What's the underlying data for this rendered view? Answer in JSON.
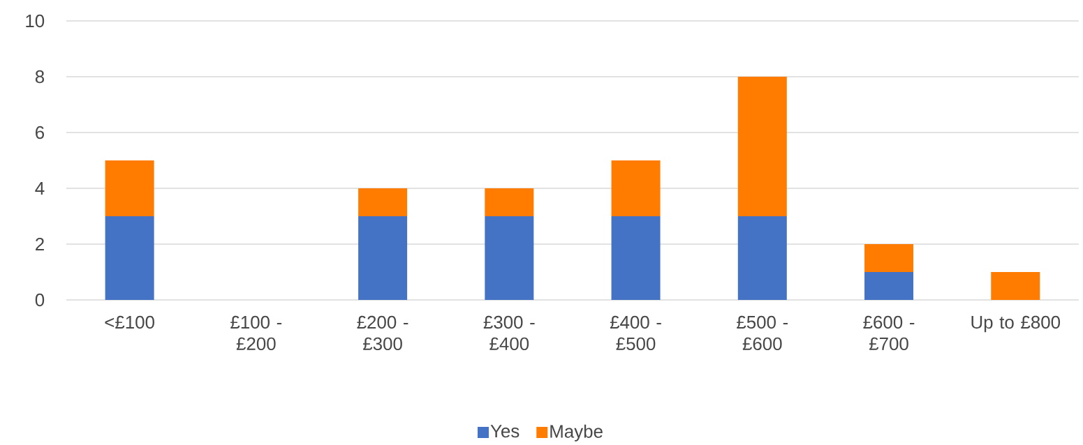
{
  "chart_data": {
    "type": "bar",
    "stacked": true,
    "categories": [
      "<£100",
      "£100 - £200",
      "£200 - £300",
      "£300 - £400",
      "£400 - £500",
      "£500 - £600",
      "£600 - £700",
      "Up to £800"
    ],
    "series": [
      {
        "name": "Yes",
        "color": "#4472c4",
        "values": [
          3,
          0,
          3,
          3,
          3,
          3,
          1,
          0
        ]
      },
      {
        "name": "Maybe",
        "color": "#ff7c00",
        "values": [
          2,
          0,
          1,
          1,
          2,
          5,
          1,
          1
        ]
      }
    ],
    "ylim": [
      0,
      10
    ],
    "yticks": [
      0,
      2,
      4,
      6,
      8,
      10
    ],
    "grid": "y",
    "legend": "bottom"
  }
}
